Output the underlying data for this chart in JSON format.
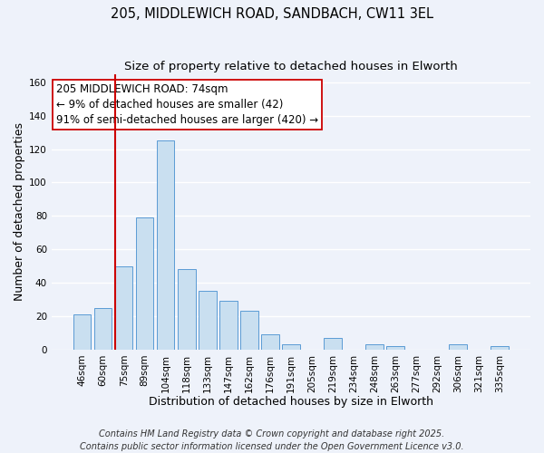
{
  "title_line1": "205, MIDDLEWICH ROAD, SANDBACH, CW11 3EL",
  "title_line2": "Size of property relative to detached houses in Elworth",
  "xlabel": "Distribution of detached houses by size in Elworth",
  "ylabel": "Number of detached properties",
  "bar_labels": [
    "46sqm",
    "60sqm",
    "75sqm",
    "89sqm",
    "104sqm",
    "118sqm",
    "133sqm",
    "147sqm",
    "162sqm",
    "176sqm",
    "191sqm",
    "205sqm",
    "219sqm",
    "234sqm",
    "248sqm",
    "263sqm",
    "277sqm",
    "292sqm",
    "306sqm",
    "321sqm",
    "335sqm"
  ],
  "bar_values": [
    21,
    25,
    50,
    79,
    125,
    48,
    35,
    29,
    23,
    9,
    3,
    0,
    7,
    0,
    3,
    2,
    0,
    0,
    3,
    0,
    2
  ],
  "bar_color": "#c9dff0",
  "bar_edge_color": "#5b9bd5",
  "ylim": [
    0,
    165
  ],
  "yticks": [
    0,
    20,
    40,
    60,
    80,
    100,
    120,
    140,
    160
  ],
  "vline_index": 2,
  "vline_color": "#cc0000",
  "annotation_line1": "205 MIDDLEWICH ROAD: 74sqm",
  "annotation_line2": "← 9% of detached houses are smaller (42)",
  "annotation_line3": "91% of semi-detached houses are larger (420) →",
  "annotation_box_color": "#ffffff",
  "annotation_box_edge": "#cc0000",
  "footer_line1": "Contains HM Land Registry data © Crown copyright and database right 2025.",
  "footer_line2": "Contains public sector information licensed under the Open Government Licence v3.0.",
  "background_color": "#eef2fa",
  "grid_color": "#ffffff",
  "title_fontsize": 10.5,
  "subtitle_fontsize": 9.5,
  "axis_label_fontsize": 9,
  "tick_fontsize": 7.5,
  "annotation_fontsize": 8.5,
  "footer_fontsize": 7
}
